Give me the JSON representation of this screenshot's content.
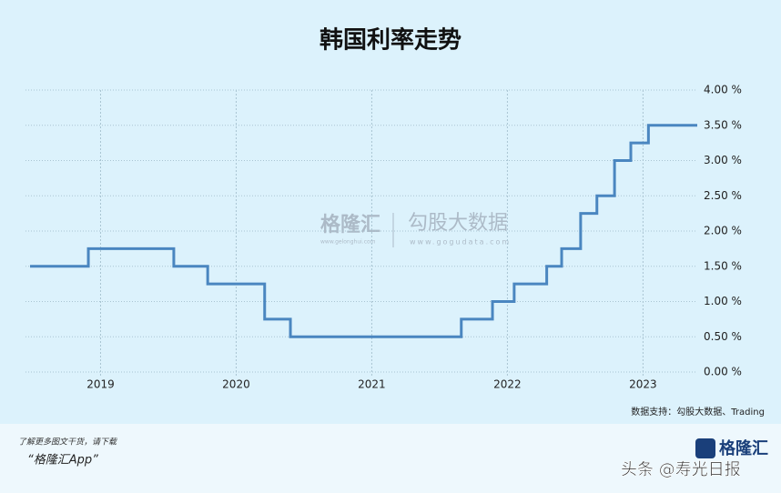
{
  "chart_data": {
    "type": "line",
    "step": true,
    "title": "韩国利率走势",
    "x": [
      2018.48,
      2018.91,
      2019.54,
      2019.79,
      2020.21,
      2020.4,
      2021.66,
      2021.89,
      2022.05,
      2022.29,
      2022.4,
      2022.54,
      2022.66,
      2022.79,
      2022.91,
      2023.04,
      2023.4
    ],
    "series": [
      {
        "color": "#4a86c0",
        "values": [
          1.5,
          1.75,
          1.5,
          1.25,
          0.75,
          0.5,
          0.75,
          1.0,
          1.25,
          1.5,
          1.75,
          2.25,
          2.5,
          3.0,
          3.25,
          3.5,
          3.5
        ]
      }
    ],
    "xlim": [
      2018.48,
      2023.4
    ],
    "xticks": [
      2019,
      2020,
      2021,
      2022,
      2023
    ],
    "ylim": [
      0,
      4
    ],
    "yticks": [
      {
        "value": 0,
        "label": "0.00 %"
      },
      {
        "value": 0.5,
        "label": "0.50 %"
      },
      {
        "value": 1,
        "label": "1.00 %"
      },
      {
        "value": 1.5,
        "label": "1.50 %"
      },
      {
        "value": 2,
        "label": "2.00 %"
      },
      {
        "value": 2.5,
        "label": "2.50 %"
      },
      {
        "value": 3,
        "label": "3.00 %"
      },
      {
        "value": 3.5,
        "label": "3.50 %"
      },
      {
        "value": 4,
        "label": "4.00 %"
      }
    ],
    "grid": true,
    "source": "数据支持：勾股大数据、Trading"
  },
  "watermark": {
    "brand": "格隆汇",
    "brand_url": "www.gelonghui.com",
    "partner": "勾股大数据",
    "partner_url": "www.gogudata.com"
  },
  "footer": {
    "note": "了解更多图文干货，请下载",
    "app": "“格隆汇App”",
    "logo": "格隆汇",
    "credit": "头条 @寿光日报"
  }
}
